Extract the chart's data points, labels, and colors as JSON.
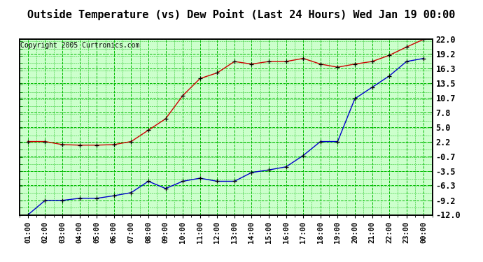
{
  "title": "Outside Temperature (vs) Dew Point (Last 24 Hours) Wed Jan 19 00:00",
  "copyright": "Copyright 2005 Curtronics.com",
  "x_labels": [
    "01:00",
    "02:00",
    "03:00",
    "04:00",
    "05:00",
    "06:00",
    "07:00",
    "08:00",
    "09:00",
    "10:00",
    "11:00",
    "12:00",
    "13:00",
    "14:00",
    "15:00",
    "16:00",
    "17:00",
    "18:00",
    "19:00",
    "20:00",
    "21:00",
    "22:00",
    "23:00",
    "00:00"
  ],
  "y_ticks": [
    -12.0,
    -9.2,
    -6.3,
    -3.5,
    -0.7,
    2.2,
    5.0,
    7.8,
    10.7,
    13.5,
    16.3,
    19.2,
    22.0
  ],
  "red_data": [
    2.2,
    2.2,
    1.6,
    1.5,
    1.5,
    1.6,
    2.2,
    4.4,
    6.6,
    11.1,
    14.4,
    15.5,
    17.7,
    17.2,
    17.7,
    17.7,
    18.3,
    17.2,
    16.6,
    17.2,
    17.7,
    18.9,
    20.5,
    22.0
  ],
  "blue_data": [
    -12.0,
    -9.2,
    -9.2,
    -8.8,
    -8.8,
    -8.3,
    -7.7,
    -5.5,
    -6.9,
    -5.5,
    -4.9,
    -5.5,
    -5.5,
    -3.8,
    -3.3,
    -2.7,
    -0.5,
    2.2,
    2.2,
    10.5,
    12.7,
    14.9,
    17.7,
    18.3
  ],
  "red_color": "#cc0000",
  "blue_color": "#0000cc",
  "bg_color": "#ffffff",
  "plot_bg_color": "#ccffcc",
  "grid_color": "#00bb00",
  "title_fontsize": 11,
  "ylim": [
    -12.0,
    22.0
  ]
}
